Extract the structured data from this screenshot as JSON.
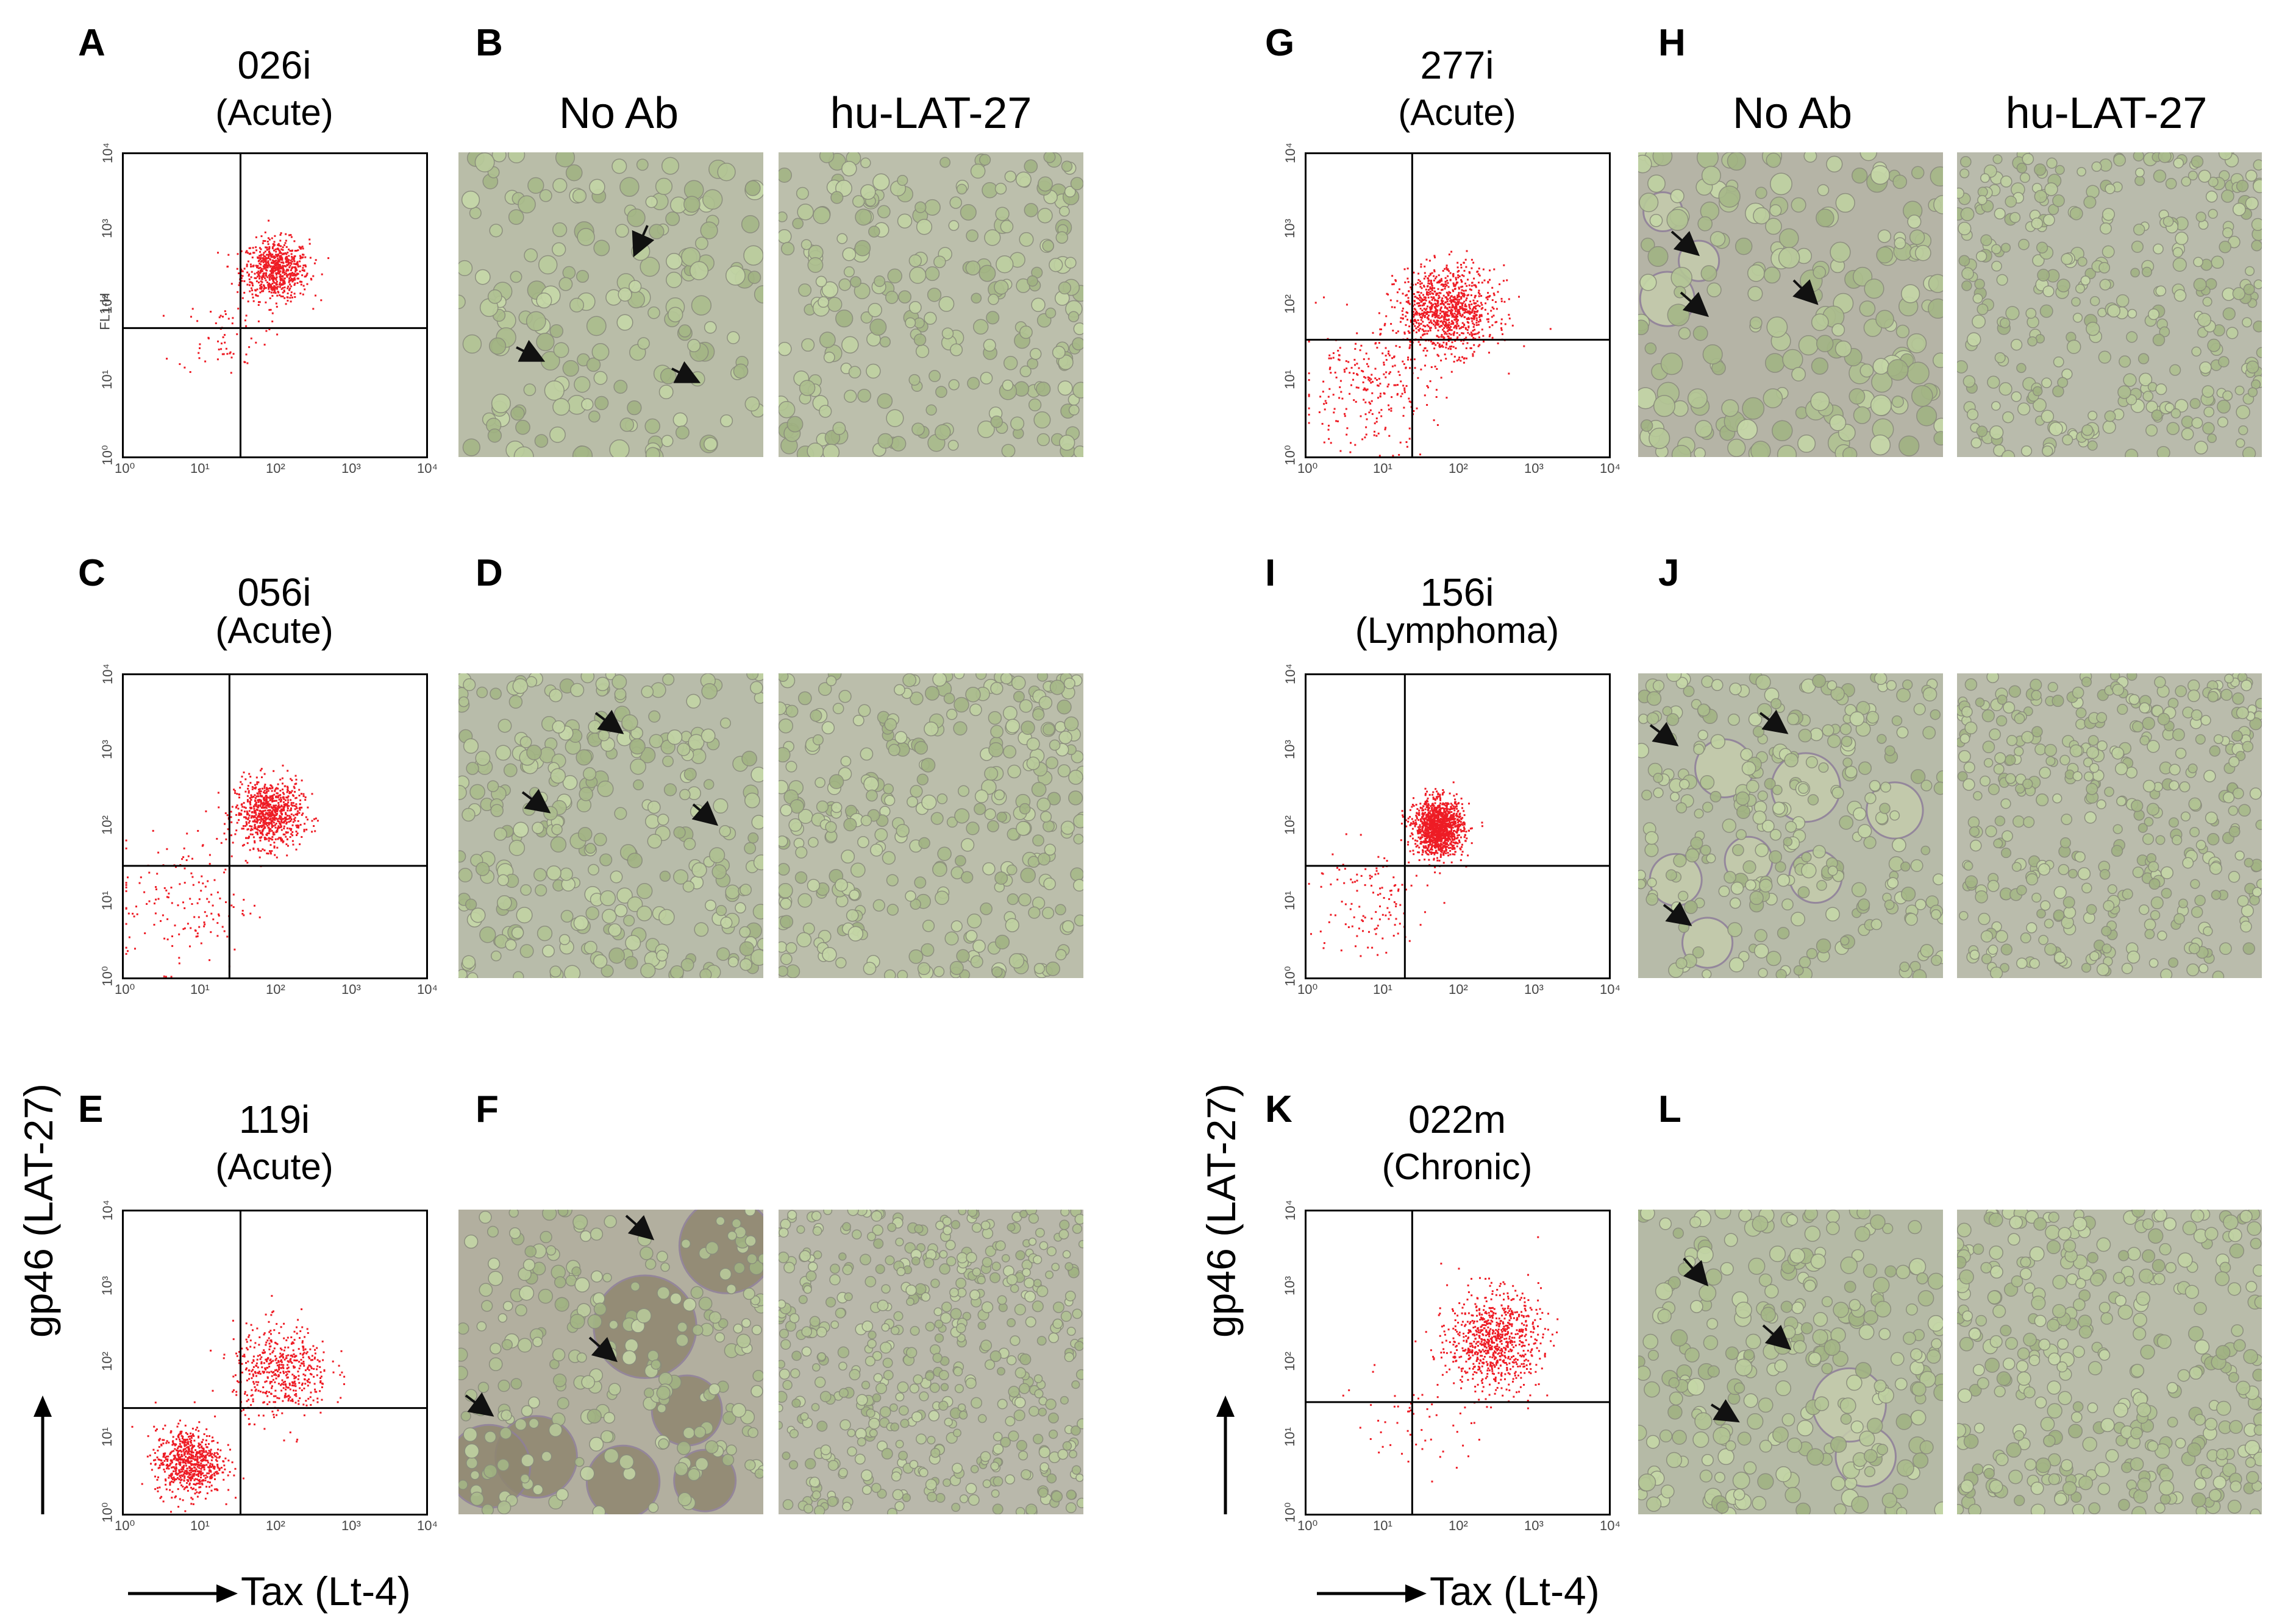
{
  "figure": {
    "panels": [
      {
        "id": "A",
        "sample": "026i",
        "type": "(Acute)",
        "photo_label": "B"
      },
      {
        "id": "C",
        "sample": "056i",
        "type": "(Acute)",
        "photo_label": "D"
      },
      {
        "id": "E",
        "sample": "119i",
        "type": "(Acute)",
        "photo_label": "F"
      },
      {
        "id": "G",
        "sample": "277i",
        "type": "(Acute)",
        "photo_label": "H"
      },
      {
        "id": "I",
        "sample": "156i",
        "type": "(Lymphoma)",
        "photo_label": "J"
      },
      {
        "id": "K",
        "sample": "022m",
        "type": "(Chronic)",
        "photo_label": "L"
      }
    ],
    "col_no_ab": "No Ab",
    "col_hu": "hu-LAT-27",
    "x_axis_label": "Tax (Lt-4)",
    "y_axis_label": "gp46 (LAT-27)",
    "fl1h_label": "FL1-H",
    "ticks": [
      "10⁰",
      "10¹",
      "10²",
      "10³",
      "10⁴"
    ]
  },
  "chart_data": [
    {
      "type": "scatter",
      "panel": "A",
      "sample": "026i",
      "xscale": "log",
      "yscale": "log",
      "xlim": [
        1,
        10000
      ],
      "ylim": [
        1,
        10000
      ],
      "gate": {
        "x": 35,
        "y": 50
      },
      "clusters": [
        {
          "cx": 100,
          "cy": 300,
          "n": 700,
          "sx": 0.22,
          "sy": 0.2
        },
        {
          "cx": 20,
          "cy": 40,
          "n": 60,
          "sx": 0.3,
          "sy": 0.25
        }
      ]
    },
    {
      "type": "scatter",
      "panel": "C",
      "sample": "056i",
      "xscale": "log",
      "yscale": "log",
      "xlim": [
        1,
        10000
      ],
      "ylim": [
        1,
        10000
      ],
      "gate": {
        "x": 25,
        "y": 30
      },
      "clusters": [
        {
          "cx": 80,
          "cy": 150,
          "n": 800,
          "sx": 0.22,
          "sy": 0.22
        },
        {
          "cx": 6,
          "cy": 10,
          "n": 150,
          "sx": 0.45,
          "sy": 0.45
        }
      ]
    },
    {
      "type": "scatter",
      "panel": "E",
      "sample": "119i",
      "xscale": "log",
      "yscale": "log",
      "xlim": [
        1,
        10000
      ],
      "ylim": [
        1,
        10000
      ],
      "gate": {
        "x": 35,
        "y": 25
      },
      "clusters": [
        {
          "cx": 7,
          "cy": 5,
          "n": 700,
          "sx": 0.22,
          "sy": 0.22
        },
        {
          "cx": 120,
          "cy": 80,
          "n": 500,
          "sx": 0.32,
          "sy": 0.3
        }
      ]
    },
    {
      "type": "scatter",
      "panel": "G",
      "sample": "277i",
      "xscale": "log",
      "yscale": "log",
      "xlim": [
        1,
        10000
      ],
      "ylim": [
        1,
        10000
      ],
      "gate": {
        "x": 25,
        "y": 35
      },
      "clusters": [
        {
          "cx": 70,
          "cy": 90,
          "n": 1000,
          "sx": 0.32,
          "sy": 0.28
        },
        {
          "cx": 6,
          "cy": 8,
          "n": 250,
          "sx": 0.45,
          "sy": 0.4
        }
      ]
    },
    {
      "type": "scatter",
      "panel": "I",
      "sample": "156i",
      "xscale": "log",
      "yscale": "log",
      "xlim": [
        1,
        10000
      ],
      "ylim": [
        1,
        10000
      ],
      "gate": {
        "x": 20,
        "y": 30
      },
      "clusters": [
        {
          "cx": 55,
          "cy": 100,
          "n": 1300,
          "sx": 0.16,
          "sy": 0.18
        },
        {
          "cx": 6,
          "cy": 10,
          "n": 120,
          "sx": 0.4,
          "sy": 0.4
        }
      ]
    },
    {
      "type": "scatter",
      "panel": "K",
      "sample": "022m",
      "xscale": "log",
      "yscale": "log",
      "xlim": [
        1,
        10000
      ],
      "ylim": [
        1,
        10000
      ],
      "gate": {
        "x": 25,
        "y": 30
      },
      "clusters": [
        {
          "cx": 300,
          "cy": 200,
          "n": 800,
          "sx": 0.3,
          "sy": 0.32
        },
        {
          "cx": 30,
          "cy": 20,
          "n": 60,
          "sx": 0.4,
          "sy": 0.4
        }
      ]
    }
  ]
}
